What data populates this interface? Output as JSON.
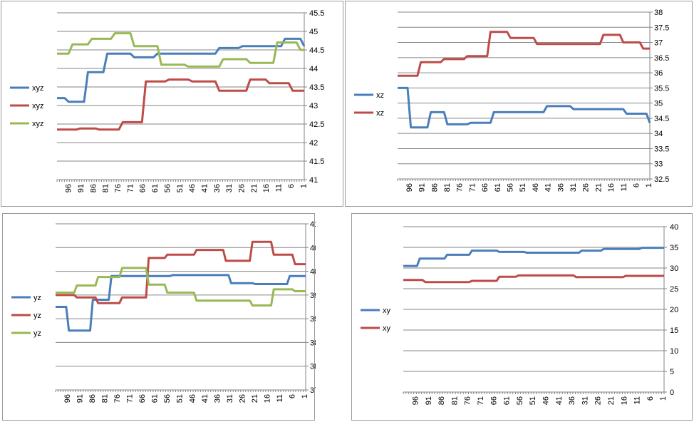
{
  "colors": {
    "blue": "#4A7EBB",
    "red": "#BE4B48",
    "green": "#98B954",
    "grid": "#868686"
  },
  "chart_data": [
    {
      "type": "line",
      "x_tick_labels": [
        "96",
        "91",
        "86",
        "81",
        "76",
        "71",
        "66",
        "61",
        "56",
        "51",
        "46",
        "41",
        "36",
        "31",
        "26",
        "21",
        "16",
        "11",
        "6",
        "1"
      ],
      "ylim": [
        41,
        45.5
      ],
      "ytick_step": 0.5,
      "y_axis_side": "right",
      "grid": true,
      "legend_position": "left",
      "series": [
        {
          "name": "xyz",
          "color": "#4A7EBB",
          "values": [
            43.2,
            43.2,
            43.2,
            43.1,
            43.1,
            43.1,
            43.1,
            43.1,
            43.9,
            43.9,
            43.9,
            43.9,
            43.9,
            44.4,
            44.4,
            44.4,
            44.4,
            44.4,
            44.4,
            44.4,
            44.3,
            44.3,
            44.3,
            44.3,
            44.3,
            44.3,
            44.4,
            44.4,
            44.4,
            44.4,
            44.4,
            44.4,
            44.4,
            44.4,
            44.4,
            44.4,
            44.4,
            44.4,
            44.4,
            44.4,
            44.4,
            44.4,
            44.55,
            44.55,
            44.55,
            44.55,
            44.55,
            44.55,
            44.6,
            44.6,
            44.6,
            44.6,
            44.6,
            44.6,
            44.6,
            44.6,
            44.6,
            44.6,
            44.6,
            44.8,
            44.8,
            44.8,
            44.8,
            44.8,
            44.6
          ]
        },
        {
          "name": "xyz",
          "color": "#BE4B48",
          "values": [
            42.35,
            42.35,
            42.35,
            42.35,
            42.35,
            42.35,
            42.38,
            42.38,
            42.38,
            42.38,
            42.38,
            42.35,
            42.35,
            42.35,
            42.35,
            42.35,
            42.35,
            42.55,
            42.55,
            42.55,
            42.55,
            42.55,
            42.55,
            43.65,
            43.65,
            43.65,
            43.65,
            43.65,
            43.65,
            43.7,
            43.7,
            43.7,
            43.7,
            43.7,
            43.7,
            43.65,
            43.65,
            43.65,
            43.65,
            43.65,
            43.65,
            43.65,
            43.4,
            43.4,
            43.4,
            43.4,
            43.4,
            43.4,
            43.4,
            43.4,
            43.7,
            43.7,
            43.7,
            43.7,
            43.7,
            43.6,
            43.6,
            43.6,
            43.6,
            43.6,
            43.6,
            43.4,
            43.4,
            43.4,
            43.4
          ]
        },
        {
          "name": "xyz",
          "color": "#98B954",
          "values": [
            44.4,
            44.4,
            44.4,
            44.4,
            44.65,
            44.65,
            44.65,
            44.65,
            44.65,
            44.8,
            44.8,
            44.8,
            44.8,
            44.8,
            44.8,
            44.95,
            44.95,
            44.95,
            44.95,
            44.95,
            44.6,
            44.6,
            44.6,
            44.6,
            44.6,
            44.6,
            44.6,
            44.1,
            44.1,
            44.1,
            44.1,
            44.1,
            44.1,
            44.1,
            44.05,
            44.05,
            44.05,
            44.05,
            44.05,
            44.05,
            44.05,
            44.05,
            44.05,
            44.25,
            44.25,
            44.25,
            44.25,
            44.25,
            44.25,
            44.25,
            44.15,
            44.15,
            44.15,
            44.15,
            44.15,
            44.15,
            44.15,
            44.7,
            44.7,
            44.7,
            44.7,
            44.7,
            44.7,
            44.5,
            44.5
          ]
        }
      ]
    },
    {
      "type": "line",
      "x_tick_labels": [
        "96",
        "91",
        "86",
        "81",
        "76",
        "71",
        "66",
        "61",
        "56",
        "51",
        "46",
        "41",
        "36",
        "31",
        "26",
        "21",
        "16",
        "11",
        "6",
        "1"
      ],
      "ylim": [
        32.5,
        38
      ],
      "ytick_step": 0.5,
      "y_axis_side": "right",
      "grid": true,
      "legend_position": "left",
      "series": [
        {
          "name": "xz",
          "color": "#4A7EBB",
          "values": [
            35.5,
            35.5,
            35.5,
            35.5,
            34.2,
            34.2,
            34.2,
            34.2,
            34.2,
            34.2,
            34.7,
            34.7,
            34.7,
            34.7,
            34.7,
            34.3,
            34.3,
            34.3,
            34.3,
            34.3,
            34.3,
            34.3,
            34.35,
            34.35,
            34.35,
            34.35,
            34.35,
            34.35,
            34.35,
            34.7,
            34.7,
            34.7,
            34.7,
            34.7,
            34.7,
            34.7,
            34.7,
            34.7,
            34.7,
            34.7,
            34.7,
            34.7,
            34.7,
            34.7,
            34.7,
            34.9,
            34.9,
            34.9,
            34.9,
            34.9,
            34.9,
            34.9,
            34.9,
            34.8,
            34.8,
            34.8,
            34.8,
            34.8,
            34.8,
            34.8,
            34.8,
            34.8,
            34.8,
            34.8,
            34.8,
            34.8,
            34.8,
            34.8,
            34.8,
            34.65,
            34.65,
            34.65,
            34.65,
            34.65,
            34.65,
            34.65,
            34.35
          ]
        },
        {
          "name": "xz",
          "color": "#BE4B48",
          "values": [
            35.9,
            35.9,
            35.9,
            35.9,
            35.9,
            35.9,
            35.9,
            36.35,
            36.35,
            36.35,
            36.35,
            36.35,
            36.35,
            36.35,
            36.45,
            36.45,
            36.45,
            36.45,
            36.45,
            36.45,
            36.45,
            36.55,
            36.55,
            36.55,
            36.55,
            36.55,
            36.55,
            36.55,
            37.35,
            37.35,
            37.35,
            37.35,
            37.35,
            37.35,
            37.15,
            37.15,
            37.15,
            37.15,
            37.15,
            37.15,
            37.15,
            37.15,
            36.95,
            36.95,
            36.95,
            36.95,
            36.95,
            36.95,
            36.95,
            36.95,
            36.95,
            36.95,
            36.95,
            36.95,
            36.95,
            36.95,
            36.95,
            36.95,
            36.95,
            36.95,
            36.95,
            36.95,
            37.25,
            37.25,
            37.25,
            37.25,
            37.25,
            37.25,
            37.0,
            37.0,
            37.0,
            37.0,
            37.0,
            37.0,
            36.8,
            36.8,
            36.8
          ]
        }
      ]
    },
    {
      "type": "line",
      "x_tick_labels": [
        "96",
        "91",
        "86",
        "81",
        "76",
        "71",
        "66",
        "61",
        "56",
        "51",
        "46",
        "41",
        "36",
        "31",
        "26",
        "21",
        "16",
        "11",
        "6",
        "1"
      ],
      "ylim": [
        37.5,
        41
      ],
      "ytick_step": 0.5,
      "y_axis_side": "right",
      "grid": true,
      "legend_position": "left",
      "series": [
        {
          "name": "yz",
          "color": "#4A7EBB",
          "values": [
            39.25,
            39.25,
            39.25,
            39.25,
            39.25,
            38.75,
            38.75,
            38.75,
            38.75,
            38.75,
            38.75,
            38.75,
            38.75,
            38.75,
            39.4,
            39.4,
            39.4,
            39.4,
            39.4,
            39.4,
            39.4,
            39.9,
            39.9,
            39.9,
            39.9,
            39.9,
            39.9,
            39.9,
            39.9,
            39.9,
            39.9,
            39.9,
            39.9,
            39.9,
            39.9,
            39.9,
            39.9,
            39.9,
            39.9,
            39.9,
            39.9,
            39.9,
            39.9,
            39.9,
            39.92,
            39.92,
            39.92,
            39.92,
            39.92,
            39.92,
            39.92,
            39.92,
            39.92,
            39.92,
            39.92,
            39.92,
            39.92,
            39.92,
            39.92,
            39.92,
            39.92,
            39.92,
            39.92,
            39.92,
            39.92,
            39.92,
            39.75,
            39.75,
            39.75,
            39.75,
            39.75,
            39.75,
            39.75,
            39.75,
            39.75,
            39.73,
            39.73,
            39.73,
            39.73,
            39.73,
            39.73,
            39.73,
            39.73,
            39.73,
            39.73,
            39.73,
            39.73,
            39.73,
            39.9,
            39.9,
            39.9,
            39.9,
            39.9,
            39.9,
            39.9
          ]
        },
        {
          "name": "yz",
          "color": "#BE4B48",
          "values": [
            39.5,
            39.5,
            39.5,
            39.5,
            39.5,
            39.5,
            39.5,
            39.5,
            39.45,
            39.45,
            39.45,
            39.45,
            39.45,
            39.45,
            39.45,
            39.45,
            39.33,
            39.33,
            39.33,
            39.33,
            39.33,
            39.33,
            39.33,
            39.33,
            39.33,
            39.45,
            39.45,
            39.45,
            39.45,
            39.45,
            39.45,
            39.45,
            39.45,
            39.45,
            39.45,
            40.28,
            40.28,
            40.28,
            40.28,
            40.28,
            40.28,
            40.28,
            40.35,
            40.35,
            40.35,
            40.35,
            40.35,
            40.35,
            40.35,
            40.35,
            40.35,
            40.35,
            40.35,
            40.45,
            40.45,
            40.45,
            40.45,
            40.45,
            40.45,
            40.45,
            40.45,
            40.45,
            40.45,
            40.45,
            40.22,
            40.22,
            40.22,
            40.22,
            40.22,
            40.22,
            40.22,
            40.22,
            40.22,
            40.22,
            40.62,
            40.62,
            40.62,
            40.62,
            40.62,
            40.62,
            40.62,
            40.62,
            40.35,
            40.35,
            40.35,
            40.35,
            40.35,
            40.35,
            40.35,
            40.35,
            40.15,
            40.15,
            40.15,
            40.15,
            40.15
          ]
        },
        {
          "name": "yz",
          "color": "#98B954",
          "values": [
            39.55,
            39.55,
            39.55,
            39.55,
            39.55,
            39.55,
            39.55,
            39.55,
            39.7,
            39.7,
            39.7,
            39.7,
            39.7,
            39.7,
            39.7,
            39.7,
            39.88,
            39.88,
            39.88,
            39.88,
            39.88,
            39.88,
            39.88,
            39.88,
            39.88,
            40.07,
            40.07,
            40.07,
            40.07,
            40.07,
            40.07,
            40.07,
            40.07,
            40.07,
            40.07,
            39.72,
            39.72,
            39.72,
            39.72,
            39.72,
            39.72,
            39.72,
            39.55,
            39.55,
            39.55,
            39.55,
            39.55,
            39.55,
            39.55,
            39.55,
            39.55,
            39.55,
            39.55,
            39.38,
            39.38,
            39.38,
            39.38,
            39.38,
            39.38,
            39.38,
            39.38,
            39.38,
            39.38,
            39.38,
            39.38,
            39.38,
            39.38,
            39.38,
            39.38,
            39.38,
            39.38,
            39.38,
            39.38,
            39.38,
            39.28,
            39.28,
            39.28,
            39.28,
            39.28,
            39.28,
            39.28,
            39.28,
            39.62,
            39.62,
            39.62,
            39.62,
            39.62,
            39.62,
            39.62,
            39.62,
            39.58,
            39.58,
            39.58,
            39.58,
            39.58
          ]
        }
      ]
    },
    {
      "type": "line",
      "x_tick_labels": [
        "96",
        "91",
        "86",
        "81",
        "76",
        "71",
        "66",
        "61",
        "56",
        "51",
        "46",
        "41",
        "36",
        "31",
        "26",
        "21",
        "16",
        "11",
        "6",
        "1"
      ],
      "ylim": [
        0,
        40
      ],
      "ytick_step": 5,
      "y_axis_side": "right",
      "grid": true,
      "legend_position": "left",
      "series": [
        {
          "name": "xy",
          "color": "#4A7EBB",
          "values": [
            30.5,
            30.5,
            30.5,
            30.5,
            30.5,
            30.5,
            32.3,
            32.3,
            32.3,
            32.3,
            32.3,
            32.3,
            32.3,
            32.3,
            32.3,
            32.3,
            33.2,
            33.2,
            33.2,
            33.2,
            33.2,
            33.2,
            33.2,
            33.2,
            33.2,
            34.2,
            34.2,
            34.2,
            34.2,
            34.2,
            34.2,
            34.2,
            34.2,
            34.2,
            34.2,
            33.9,
            33.9,
            33.9,
            33.9,
            33.9,
            33.9,
            33.9,
            33.9,
            33.9,
            33.9,
            33.7,
            33.7,
            33.7,
            33.7,
            33.7,
            33.7,
            33.7,
            33.7,
            33.7,
            33.7,
            33.7,
            33.7,
            33.7,
            33.7,
            33.7,
            33.7,
            33.7,
            33.7,
            33.7,
            33.7,
            34.2,
            34.2,
            34.2,
            34.2,
            34.2,
            34.2,
            34.2,
            34.2,
            34.6,
            34.6,
            34.6,
            34.6,
            34.6,
            34.6,
            34.6,
            34.6,
            34.6,
            34.6,
            34.6,
            34.6,
            34.6,
            34.6,
            34.9,
            34.9,
            34.9,
            34.9,
            34.9,
            34.9,
            34.9,
            34.9,
            34.9
          ]
        },
        {
          "name": "xy",
          "color": "#BE4B48",
          "values": [
            27.1,
            27.1,
            27.1,
            27.1,
            27.1,
            27.1,
            27.1,
            27.1,
            26.6,
            26.6,
            26.6,
            26.6,
            26.6,
            26.6,
            26.6,
            26.6,
            26.6,
            26.6,
            26.6,
            26.6,
            26.6,
            26.6,
            26.6,
            26.6,
            26.6,
            26.9,
            26.9,
            26.9,
            26.9,
            26.9,
            26.9,
            26.9,
            26.9,
            26.9,
            26.9,
            27.9,
            27.9,
            27.9,
            27.9,
            27.9,
            27.9,
            27.9,
            28.2,
            28.2,
            28.2,
            28.2,
            28.2,
            28.2,
            28.2,
            28.2,
            28.2,
            28.2,
            28.2,
            28.2,
            28.2,
            28.2,
            28.2,
            28.2,
            28.2,
            28.2,
            28.2,
            28.2,
            28.2,
            27.8,
            27.8,
            27.8,
            27.8,
            27.8,
            27.8,
            27.8,
            27.8,
            27.8,
            27.8,
            27.8,
            27.8,
            27.8,
            27.8,
            27.8,
            27.8,
            27.8,
            27.8,
            28.1,
            28.1,
            28.1,
            28.1,
            28.1,
            28.1,
            28.1,
            28.1,
            28.1,
            28.1,
            28.1,
            28.1,
            28.1,
            28.1,
            28.1
          ]
        }
      ]
    }
  ]
}
